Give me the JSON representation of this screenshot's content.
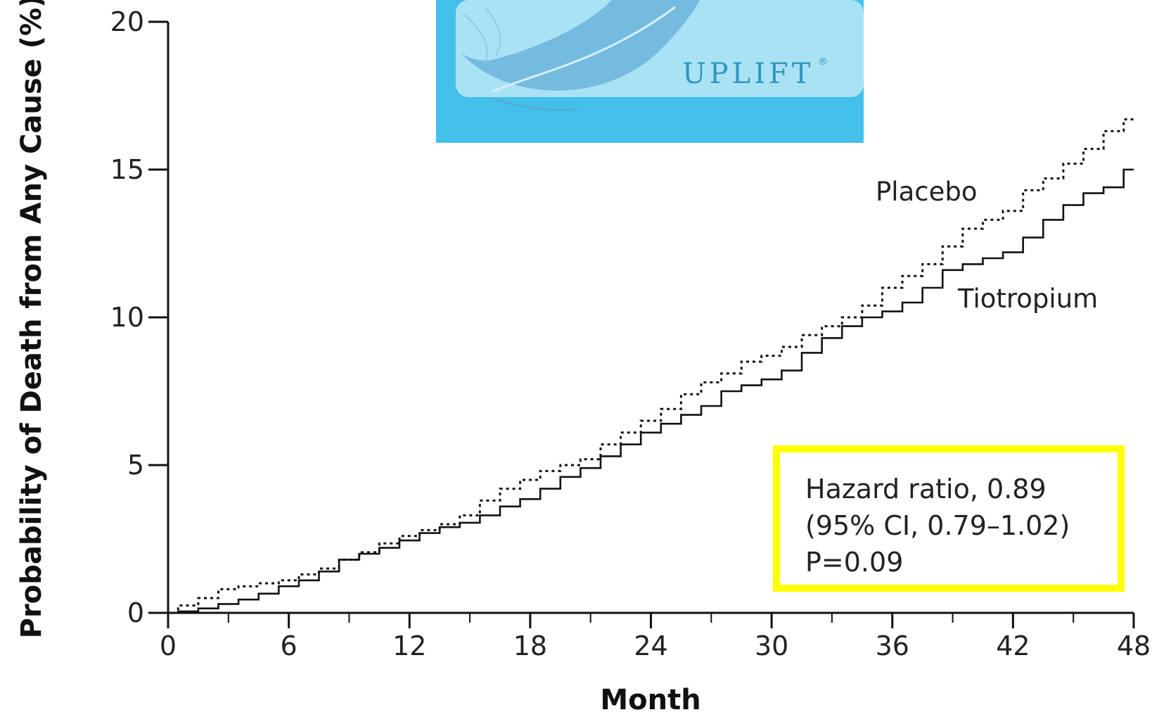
{
  "chart_data": {
    "type": "line",
    "xlabel": "Month",
    "ylabel": "Probability of Death from Any Cause (%)",
    "xlim": [
      0,
      48
    ],
    "ylim": [
      0,
      20
    ],
    "x_ticks": [
      0,
      6,
      12,
      18,
      24,
      30,
      36,
      42,
      48
    ],
    "x_minor_ticks": [
      3,
      9,
      15,
      21,
      27,
      33,
      39,
      45
    ],
    "y_ticks": [
      0,
      5,
      10,
      15,
      20
    ],
    "grid": false,
    "series": [
      {
        "name": "Placebo",
        "style": "dotted",
        "color": "#111111",
        "x": [
          0,
          1,
          2,
          3,
          4,
          5,
          6,
          7,
          8,
          9,
          10,
          11,
          12,
          13,
          14,
          15,
          16,
          17,
          18,
          19,
          20,
          21,
          22,
          23,
          24,
          25,
          26,
          27,
          28,
          29,
          30,
          31,
          32,
          33,
          34,
          35,
          36,
          37,
          38,
          39,
          40,
          41,
          42,
          43,
          44,
          45,
          46,
          47,
          48
        ],
        "y": [
          0,
          0.25,
          0.5,
          0.8,
          0.9,
          1.0,
          1.1,
          1.3,
          1.5,
          1.8,
          2.05,
          2.35,
          2.6,
          2.8,
          3.0,
          3.3,
          3.8,
          4.2,
          4.5,
          4.8,
          5.0,
          5.2,
          5.7,
          6.1,
          6.5,
          6.9,
          7.4,
          7.8,
          8.1,
          8.5,
          8.7,
          9.0,
          9.4,
          9.7,
          10.0,
          10.4,
          11.0,
          11.4,
          11.8,
          12.4,
          13.0,
          13.3,
          13.6,
          14.3,
          14.7,
          15.2,
          15.7,
          16.3,
          16.7
        ]
      },
      {
        "name": "Tiotropium",
        "style": "solid",
        "color": "#111111",
        "x": [
          0,
          1,
          2,
          3,
          4,
          5,
          6,
          7,
          8,
          9,
          10,
          11,
          12,
          13,
          14,
          15,
          16,
          17,
          18,
          19,
          20,
          21,
          22,
          23,
          24,
          25,
          26,
          27,
          28,
          29,
          30,
          31,
          32,
          33,
          34,
          35,
          36,
          37,
          38,
          39,
          40,
          41,
          42,
          43,
          44,
          45,
          46,
          47,
          48
        ],
        "y": [
          0,
          0.05,
          0.15,
          0.3,
          0.45,
          0.65,
          0.9,
          1.1,
          1.4,
          1.8,
          2.0,
          2.2,
          2.45,
          2.7,
          2.9,
          3.05,
          3.3,
          3.6,
          3.85,
          4.2,
          4.6,
          4.9,
          5.3,
          5.7,
          6.1,
          6.4,
          6.7,
          7.0,
          7.5,
          7.7,
          7.9,
          8.2,
          8.8,
          9.3,
          9.7,
          10.0,
          10.2,
          10.5,
          11.0,
          11.6,
          11.8,
          12.0,
          12.2,
          12.7,
          13.3,
          13.8,
          14.2,
          14.4,
          15.0
        ]
      }
    ],
    "annotations": {
      "placebo_label": "Placebo",
      "tiotropium_label": "Tiotropium",
      "stats_box": {
        "line1": "Hazard ratio, 0.89",
        "line2": "(95% CI, 0.79–1.02)",
        "line3": "P=0.09",
        "border_color": "#ffff00"
      }
    }
  },
  "logo": {
    "text": "UPLIFT",
    "mark": "®",
    "icon": "feather-icon",
    "background_color": "#43c0ea",
    "panel_color": "#a9e2f5",
    "text_color": "#2f95c0"
  }
}
